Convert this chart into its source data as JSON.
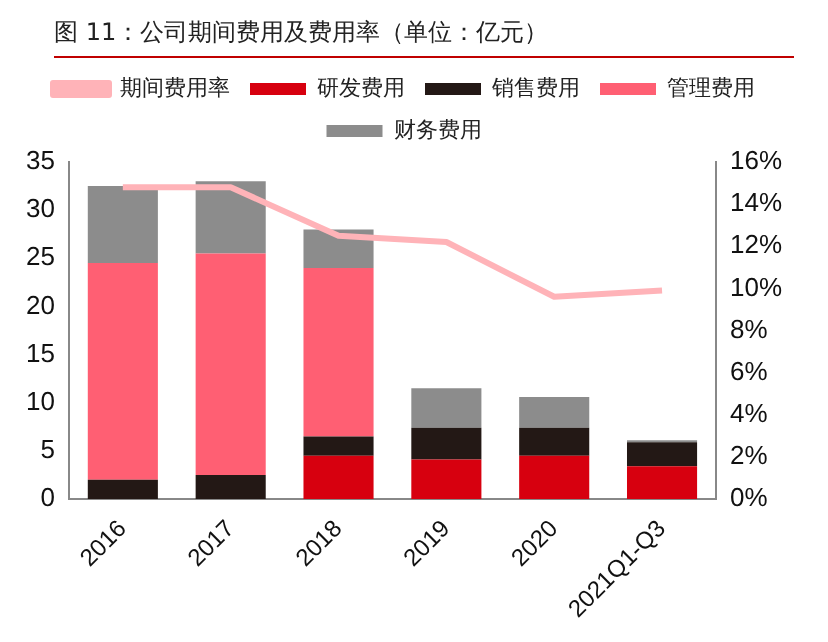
{
  "chart_data": {
    "type": "bar",
    "title": "图 11：公司期间费用及费用率（单位：亿元）",
    "categories": [
      "2016",
      "2017",
      "2018",
      "2019",
      "2020",
      "2021Q1-Q3"
    ],
    "stacked": true,
    "series": [
      {
        "name": "研发费用",
        "color": "#d7000f",
        "values": [
          0,
          0,
          4.5,
          4.1,
          4.5,
          3.4
        ]
      },
      {
        "name": "销售费用",
        "color": "#231815",
        "values": [
          2,
          2.5,
          2,
          3.3,
          2.9,
          2.5
        ]
      },
      {
        "name": "管理费用",
        "color": "#ff5f73",
        "values": [
          22.5,
          23,
          17.5,
          0,
          0,
          0
        ]
      },
      {
        "name": "财务费用",
        "color": "#8c8c8c",
        "values": [
          8,
          7.5,
          4,
          4.1,
          3.2,
          0.2
        ]
      },
      {
        "name": "期间费用率",
        "type": "line",
        "axis": "y2",
        "color": "#ffb3b8",
        "values": [
          14.8,
          14.8,
          12.5,
          12.2,
          9.6,
          9.9
        ]
      }
    ],
    "ylim": [
      0,
      35
    ],
    "yticks": [
      0,
      5,
      10,
      15,
      20,
      25,
      30,
      35
    ],
    "y2lim": [
      0,
      16
    ],
    "y2ticks": [
      {
        "value": 0,
        "label": "0%"
      },
      {
        "value": 2,
        "label": "2%"
      },
      {
        "value": 4,
        "label": "4%"
      },
      {
        "value": 6,
        "label": "6%"
      },
      {
        "value": 8,
        "label": "8%"
      },
      {
        "value": 10,
        "label": "10%"
      },
      {
        "value": 12,
        "label": "12%"
      },
      {
        "value": 14,
        "label": "14%"
      },
      {
        "value": 16,
        "label": "16%"
      }
    ],
    "grid": false,
    "legend": "top",
    "marker": "none"
  }
}
